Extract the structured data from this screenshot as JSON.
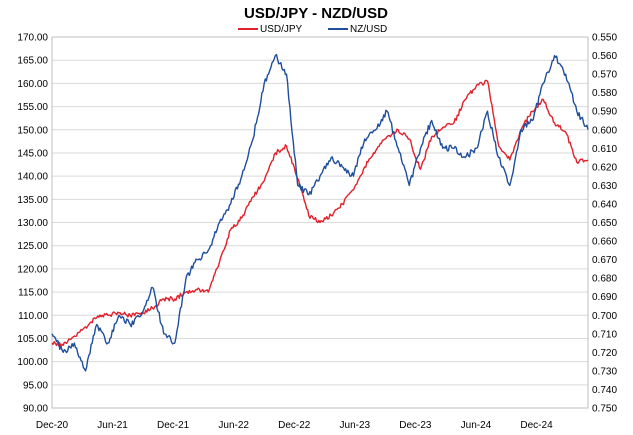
{
  "chart_data": {
    "type": "line",
    "title": "USD/JPY - NZD/USD",
    "legend": {
      "placement": "top-center"
    },
    "grid": {
      "horizontal": true,
      "vertical": false
    },
    "x_ticks": [
      "Dec-20",
      "Jun-21",
      "Dec-21",
      "Jun-22",
      "Dec-22",
      "Jun-23",
      "Dec-23",
      "Jun-24",
      "Dec-24"
    ],
    "x_range": [
      0,
      48
    ],
    "y_left": {
      "range": [
        90,
        170
      ],
      "ticks": [
        "90.00",
        "95.00",
        "100.00",
        "105.00",
        "110.00",
        "115.00",
        "120.00",
        "125.00",
        "130.00",
        "135.00",
        "140.00",
        "145.00",
        "150.00",
        "155.00",
        "160.00",
        "165.00",
        "170.00"
      ]
    },
    "y_right": {
      "inverted": true,
      "range": [
        0.55,
        0.75
      ],
      "ticks": [
        "0.550",
        "0.560",
        "0.570",
        "0.580",
        "0.590",
        "0.600",
        "0.610",
        "0.620",
        "0.630",
        "0.640",
        "0.650",
        "0.660",
        "0.670",
        "0.680",
        "0.690",
        "0.700",
        "0.710",
        "0.720",
        "0.730",
        "0.740",
        "0.750"
      ]
    },
    "series": [
      {
        "name": "USD/JPY",
        "axis": "left",
        "color": "#e0202a",
        "points": [
          [
            0,
            104.0
          ],
          [
            1,
            103.5
          ],
          [
            2,
            105.5
          ],
          [
            3,
            107.5
          ],
          [
            4,
            109.5
          ],
          [
            5,
            110.0
          ],
          [
            6,
            110.5
          ],
          [
            7,
            110.0
          ],
          [
            8,
            110.5
          ],
          [
            9,
            111.5
          ],
          [
            10,
            113.5
          ],
          [
            11,
            113.5
          ],
          [
            12,
            115.0
          ],
          [
            13,
            115.5
          ],
          [
            14,
            115.0
          ],
          [
            15,
            121.5
          ],
          [
            16,
            128.5
          ],
          [
            17,
            131.0
          ],
          [
            18,
            135.5
          ],
          [
            19,
            139.0
          ],
          [
            20,
            145.0
          ],
          [
            21,
            146.5
          ],
          [
            22,
            139.5
          ],
          [
            23,
            131.5
          ],
          [
            24,
            130.0
          ],
          [
            25,
            131.5
          ],
          [
            26,
            134.0
          ],
          [
            27,
            137.0
          ],
          [
            28,
            142.0
          ],
          [
            29,
            145.5
          ],
          [
            30,
            148.5
          ],
          [
            31,
            150.0
          ],
          [
            32,
            148.0
          ],
          [
            33,
            141.5
          ],
          [
            34,
            148.5
          ],
          [
            35,
            150.5
          ],
          [
            36,
            151.5
          ],
          [
            37,
            156.5
          ],
          [
            38,
            159.5
          ],
          [
            39,
            160.5
          ],
          [
            40,
            146.5
          ],
          [
            41,
            143.5
          ],
          [
            42,
            150.0
          ],
          [
            43,
            154.0
          ],
          [
            44,
            156.5
          ],
          [
            45,
            151.5
          ],
          [
            46,
            149.5
          ],
          [
            47,
            143.0
          ],
          [
            48,
            143.5
          ]
        ]
      },
      {
        "name": "NZ/USD",
        "axis": "right",
        "color": "#1f4e9c",
        "points": [
          [
            0,
            0.71
          ],
          [
            1,
            0.72
          ],
          [
            2,
            0.715
          ],
          [
            3,
            0.73
          ],
          [
            4,
            0.705
          ],
          [
            5,
            0.715
          ],
          [
            6,
            0.7
          ],
          [
            7,
            0.705
          ],
          [
            8,
            0.7
          ],
          [
            9,
            0.685
          ],
          [
            10,
            0.71
          ],
          [
            11,
            0.715
          ],
          [
            12,
            0.68
          ],
          [
            13,
            0.67
          ],
          [
            14,
            0.665
          ],
          [
            15,
            0.65
          ],
          [
            16,
            0.64
          ],
          [
            17,
            0.625
          ],
          [
            18,
            0.605
          ],
          [
            19,
            0.575
          ],
          [
            20,
            0.56
          ],
          [
            21,
            0.57
          ],
          [
            22,
            0.63
          ],
          [
            23,
            0.635
          ],
          [
            24,
            0.625
          ],
          [
            25,
            0.615
          ],
          [
            26,
            0.62
          ],
          [
            27,
            0.625
          ],
          [
            28,
            0.605
          ],
          [
            29,
            0.6
          ],
          [
            30,
            0.59
          ],
          [
            31,
            0.61
          ],
          [
            32,
            0.63
          ],
          [
            33,
            0.61
          ],
          [
            34,
            0.595
          ],
          [
            35,
            0.61
          ],
          [
            36,
            0.61
          ],
          [
            37,
            0.615
          ],
          [
            38,
            0.61
          ],
          [
            39,
            0.59
          ],
          [
            40,
            0.615
          ],
          [
            41,
            0.63
          ],
          [
            42,
            0.6
          ],
          [
            43,
            0.595
          ],
          [
            44,
            0.575
          ],
          [
            45,
            0.56
          ],
          [
            46,
            0.57
          ],
          [
            47,
            0.59
          ],
          [
            48,
            0.6
          ]
        ]
      }
    ]
  }
}
